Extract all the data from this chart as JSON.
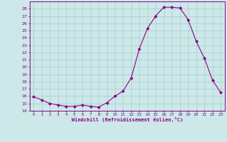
{
  "x": [
    0,
    1,
    2,
    3,
    4,
    5,
    6,
    7,
    8,
    9,
    10,
    11,
    12,
    13,
    14,
    15,
    16,
    17,
    18,
    19,
    20,
    21,
    22,
    23
  ],
  "y": [
    15.9,
    15.5,
    15.0,
    14.8,
    14.6,
    14.6,
    14.8,
    14.6,
    14.5,
    15.1,
    16.0,
    16.7,
    18.5,
    22.5,
    25.3,
    27.0,
    28.2,
    28.2,
    28.1,
    26.5,
    23.5,
    21.2,
    18.2,
    16.5
  ],
  "line_color": "#8B008B",
  "marker": "D",
  "marker_size": 2.0,
  "bg_color": "#cce8e8",
  "grid_color": "#aacccc",
  "xlabel": "Windchill (Refroidissement éolien,°C)",
  "tick_color": "#8B008B",
  "ylim": [
    14,
    29
  ],
  "xlim": [
    -0.5,
    23.5
  ],
  "yticks": [
    14,
    15,
    16,
    17,
    18,
    19,
    20,
    21,
    22,
    23,
    24,
    25,
    26,
    27,
    28
  ],
  "xtick_labels": [
    "0",
    "1",
    "2",
    "3",
    "4",
    "5",
    "6",
    "7",
    "8",
    "9",
    "10",
    "11",
    "12",
    "13",
    "14",
    "15",
    "16",
    "17",
    "18",
    "19",
    "20",
    "21",
    "22",
    "23"
  ],
  "spine_color": "#8B008B"
}
